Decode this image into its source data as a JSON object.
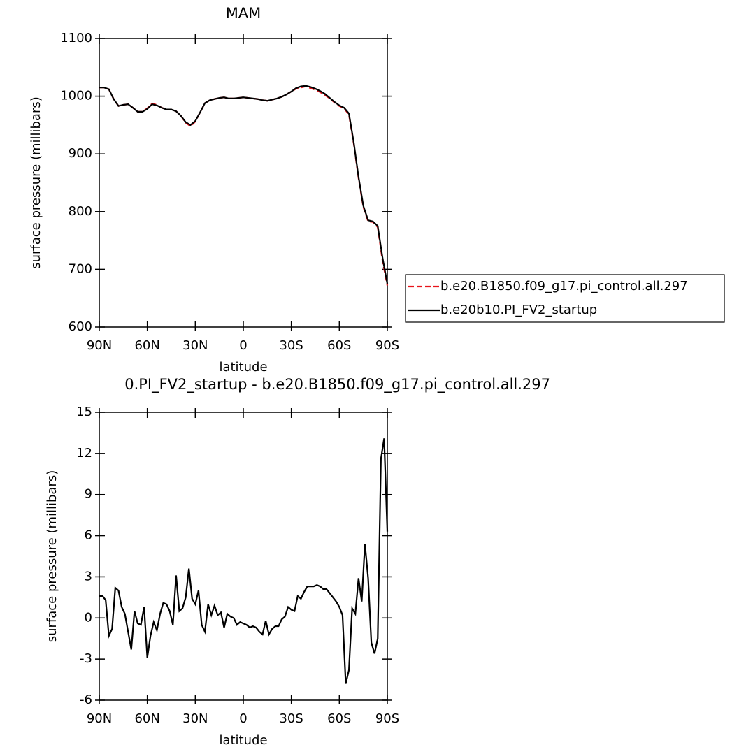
{
  "chart_data": [
    {
      "type": "line",
      "title": "MAM",
      "xlabel": "latitude",
      "ylabel": "surface pressure (millibars)",
      "x": [
        90,
        87,
        84,
        81,
        78,
        75,
        72,
        69,
        66,
        63,
        60,
        57,
        54,
        51,
        48,
        45,
        42,
        39,
        36,
        33,
        30,
        27,
        24,
        21,
        18,
        15,
        12,
        9,
        6,
        3,
        0,
        -3,
        -6,
        -9,
        -12,
        -15,
        -18,
        -21,
        -24,
        -27,
        -30,
        -33,
        -36,
        -39,
        -42,
        -45,
        -48,
        -51,
        -54,
        -57,
        -60,
        -63,
        -66,
        -69,
        -72,
        -75,
        -78,
        -81,
        -84,
        -87,
        -90
      ],
      "series": [
        {
          "name": "b.e20.B1850.f09_g17.pi_control.all.297",
          "color": "#e8141b",
          "style": "dashed",
          "values": [
            1015,
            1015,
            1012,
            995,
            983,
            985,
            986,
            980,
            973,
            973,
            979,
            987,
            985,
            980,
            977,
            977,
            974,
            966,
            954,
            948,
            956,
            972,
            988,
            993,
            995,
            997,
            998,
            996,
            996,
            997,
            998,
            997,
            996,
            995,
            993,
            992,
            994,
            996,
            999,
            1003,
            1008,
            1013,
            1015,
            1017,
            1014,
            1011,
            1007,
            1002,
            996,
            989,
            983,
            979,
            968,
            918,
            858,
            808,
            783,
            782,
            773,
            715,
            672
          ]
        },
        {
          "name": "b.e20b10.PI_FV2_startup",
          "color": "#000000",
          "style": "solid",
          "values": [
            1015,
            1015,
            1012,
            995,
            983,
            985,
            986,
            980,
            973,
            973,
            978,
            986,
            984,
            980,
            977,
            977,
            974,
            966,
            955,
            950,
            957,
            972,
            988,
            993,
            995,
            997,
            998,
            996,
            996,
            997,
            998,
            997,
            996,
            995,
            993,
            992,
            994,
            996,
            999,
            1003,
            1008,
            1014,
            1017,
            1018,
            1016,
            1013,
            1009,
            1004,
            997,
            990,
            984,
            980,
            970,
            920,
            860,
            810,
            785,
            783,
            775,
            720,
            675
          ]
        }
      ],
      "xlim": [
        90,
        -90
      ],
      "xticks": [
        {
          "value": 90,
          "label": "90N"
        },
        {
          "value": 60,
          "label": "60N"
        },
        {
          "value": 30,
          "label": "30N"
        },
        0,
        {
          "value": -30,
          "label": "30S"
        },
        {
          "value": -60,
          "label": "60S"
        },
        {
          "value": -90,
          "label": "90S"
        }
      ],
      "ylim": [
        600,
        1100
      ],
      "yticks": [
        600,
        700,
        800,
        900,
        1000,
        1100
      ],
      "legend": "right"
    },
    {
      "type": "line",
      "title": "0.PI_FV2_startup - b.e20.B1850.f09_g17.pi_control.all.297",
      "xlabel": "latitude",
      "ylabel": "surface pressure (millibars)",
      "x": [
        90,
        88,
        86,
        84,
        82,
        80,
        78,
        76,
        74,
        72,
        70,
        68,
        66,
        64,
        62,
        60,
        58,
        56,
        54,
        52,
        50,
        48,
        46,
        44,
        42,
        40,
        38,
        36,
        34,
        32,
        30,
        28,
        26,
        24,
        22,
        20,
        18,
        16,
        14,
        12,
        10,
        8,
        6,
        4,
        2,
        0,
        -2,
        -4,
        -6,
        -8,
        -10,
        -12,
        -14,
        -16,
        -18,
        -20,
        -22,
        -24,
        -26,
        -28,
        -30,
        -32,
        -34,
        -36,
        -38,
        -40,
        -42,
        -44,
        -46,
        -48,
        -50,
        -52,
        -54,
        -56,
        -58,
        -60,
        -62,
        -64,
        -66,
        -68,
        -70,
        -72,
        -74,
        -76,
        -78,
        -80,
        -82,
        -84,
        -86,
        -88,
        -90
      ],
      "series": [
        {
          "name": "b.e20b10.PI_FV2_startup",
          "color": "#000000",
          "style": "solid",
          "values": [
            1.6,
            1.6,
            1.3,
            -1.3,
            -0.8,
            2.2,
            2.0,
            0.8,
            0.3,
            -1.0,
            -2.3,
            0.5,
            -0.4,
            -0.5,
            0.8,
            -2.9,
            -1.3,
            -0.3,
            -0.9,
            0.3,
            1.1,
            1.0,
            0.5,
            -0.5,
            3.1,
            0.5,
            0.7,
            1.5,
            3.6,
            1.4,
            1.0,
            2.0,
            -0.5,
            -1.0,
            1.0,
            0.2,
            0.9,
            0.2,
            0.4,
            -0.7,
            0.3,
            0.1,
            0,
            -0.5,
            -0.3,
            -0.4,
            -0.5,
            -0.7,
            -0.6,
            -0.7,
            -1.0,
            -1.2,
            -0.2,
            -1.2,
            -0.8,
            -0.6,
            -0.6,
            -0.1,
            0.1,
            0.8,
            0.6,
            0.5,
            1.6,
            1.4,
            1.9,
            2.3,
            2.3,
            2.3,
            2.4,
            2.3,
            2.1,
            2.1,
            1.8,
            1.5,
            1.2,
            0.8,
            0.2,
            -4.8,
            -3.8,
            0.7,
            0.3,
            2.9,
            1.2,
            5.4,
            2.9,
            -1.8,
            -2.6,
            -1.5,
            11.6,
            13.1,
            6.3
          ]
        }
      ],
      "xlim": [
        90,
        -90
      ],
      "xticks": [
        {
          "value": 90,
          "label": "90N"
        },
        {
          "value": 60,
          "label": "60N"
        },
        {
          "value": 30,
          "label": "30N"
        },
        0,
        {
          "value": -30,
          "label": "30S"
        },
        {
          "value": -60,
          "label": "60S"
        },
        {
          "value": -90,
          "label": "90S"
        }
      ],
      "ylim": [
        -6,
        15
      ],
      "yticks": [
        -6,
        -3,
        0,
        3,
        6,
        9,
        12,
        15
      ]
    }
  ]
}
